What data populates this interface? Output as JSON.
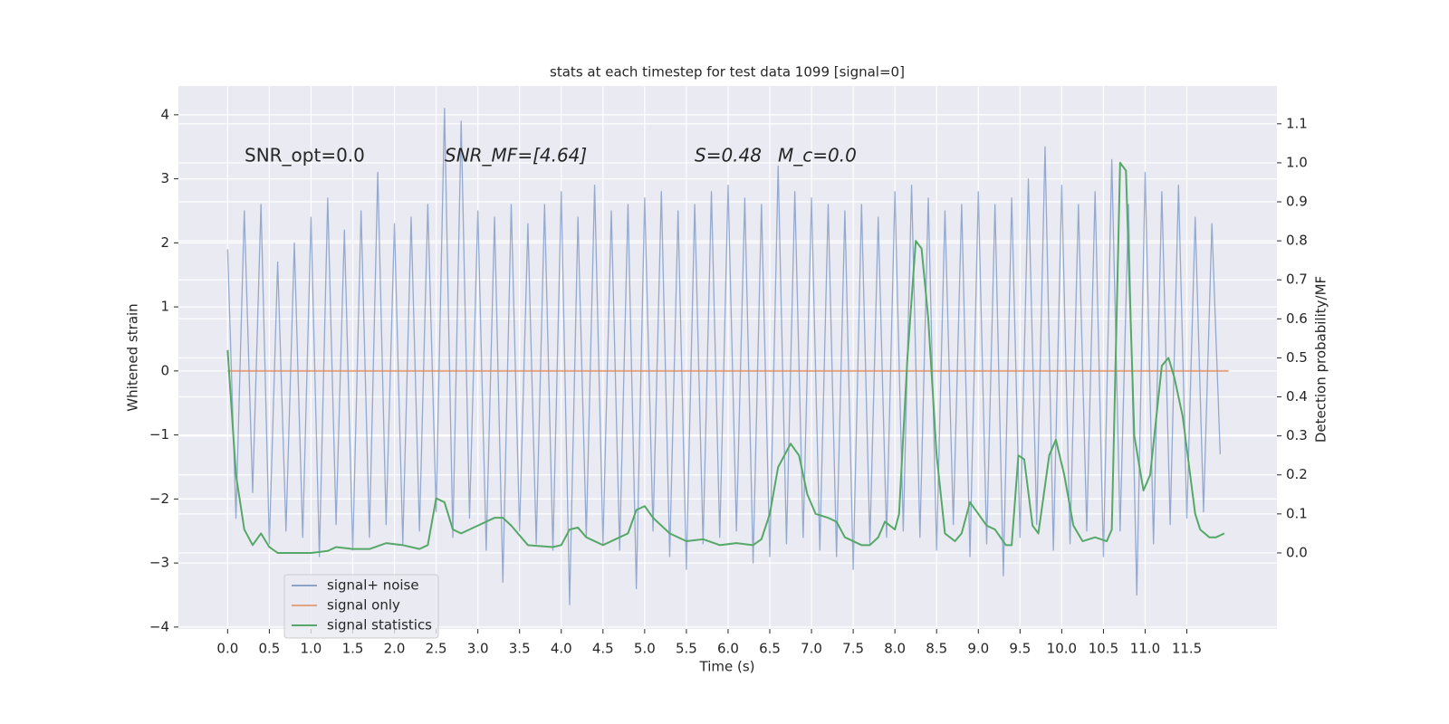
{
  "chart_data": {
    "type": "line",
    "title": "stats at each timestep for test data 1099 [signal=0]",
    "xlabel": "Time (s)",
    "ylabel": "Whitened strain",
    "y2label": "Detection probability/MF",
    "annotations": [
      "SNR_opt=0.0",
      "SNR_MF=[4.64]",
      "S=0.48",
      "M_c=0.0"
    ],
    "xlim": [
      -0.59,
      12.58
    ],
    "ylim": [
      -4.03,
      4.45
    ],
    "y2lim": [
      -0.195,
      1.197
    ],
    "xticks": [
      {
        "value": 0,
        "label": "0.0"
      },
      0.5,
      {
        "value": 1,
        "label": "1.0"
      },
      1.5,
      {
        "value": 2,
        "label": "2.0"
      },
      2.5,
      {
        "value": 3,
        "label": "3.0"
      },
      3.5,
      {
        "value": 4,
        "label": "4.0"
      },
      4.5,
      {
        "value": 5,
        "label": "5.0"
      },
      5.5,
      {
        "value": 6,
        "label": "6.0"
      },
      6.5,
      {
        "value": 7,
        "label": "7.0"
      },
      7.5,
      {
        "value": 8,
        "label": "8.0"
      },
      8.5,
      {
        "value": 9,
        "label": "9.0"
      },
      9.5,
      {
        "value": 10,
        "label": "10.0"
      },
      10.5,
      {
        "value": 11,
        "label": "11.0"
      },
      11.5
    ],
    "yticks": [
      {
        "value": -4,
        "label": "−4"
      },
      {
        "value": -3,
        "label": "−3"
      },
      {
        "value": -2,
        "label": "−2"
      },
      {
        "value": -1,
        "label": "−1"
      },
      0,
      1,
      2,
      3,
      4
    ],
    "y2ticks": [
      {
        "value": 0,
        "label": "0.0"
      },
      0.1,
      0.2,
      0.3,
      0.4,
      0.5,
      0.6,
      0.7,
      0.8,
      0.9,
      {
        "value": 1,
        "label": "1.0"
      },
      1.1
    ],
    "grid": true,
    "legend": "lower left",
    "series": [
      {
        "name": "signal+ noise",
        "color": "#4c72b0",
        "x": [
          0,
          0.1,
          0.2,
          0.3,
          0.4,
          0.5,
          0.6,
          0.7,
          0.8,
          0.9,
          1,
          1.1,
          1.2,
          1.3,
          1.4,
          1.5,
          1.6,
          1.7,
          1.8,
          1.9,
          2,
          2.1,
          2.2,
          2.3,
          2.4,
          2.5,
          2.6,
          2.7,
          2.8,
          2.9,
          3,
          3.1,
          3.2,
          3.3,
          3.4,
          3.5,
          3.6,
          3.7,
          3.8,
          3.9,
          4,
          4.1,
          4.2,
          4.3,
          4.4,
          4.5,
          4.6,
          4.7,
          4.8,
          4.9,
          5,
          5.1,
          5.2,
          5.3,
          5.4,
          5.5,
          5.6,
          5.7,
          5.8,
          5.9,
          6,
          6.1,
          6.2,
          6.3,
          6.4,
          6.5,
          6.6,
          6.7,
          6.8,
          6.9,
          7,
          7.1,
          7.2,
          7.3,
          7.4,
          7.5,
          7.6,
          7.7,
          7.8,
          7.9,
          8,
          8.1,
          8.2,
          8.3,
          8.4,
          8.5,
          8.6,
          8.7,
          8.8,
          8.9,
          9,
          9.1,
          9.2,
          9.3,
          9.4,
          9.5,
          9.6,
          9.7,
          9.8,
          9.9,
          10,
          10.1,
          10.2,
          10.3,
          10.4,
          10.5,
          10.6,
          10.7,
          10.8,
          10.9,
          11,
          11.1,
          11.2,
          11.3,
          11.4,
          11.5,
          11.6,
          11.7,
          11.8,
          11.9
        ],
        "values": [
          1.9,
          -2.3,
          2.5,
          -1.9,
          2.6,
          -2.7,
          1.7,
          -2.5,
          2.0,
          -2.6,
          2.4,
          -2.9,
          2.7,
          -2.4,
          2.2,
          -2.8,
          2.5,
          -2.6,
          3.1,
          -2.4,
          2.3,
          -2.7,
          2.4,
          -2.5,
          2.6,
          -2.2,
          4.1,
          -2.6,
          3.9,
          -2.3,
          2.5,
          -2.8,
          2.4,
          -3.3,
          2.6,
          -2.5,
          2.3,
          -2.7,
          2.6,
          -2.8,
          2.8,
          -3.65,
          2.4,
          -2.6,
          2.9,
          -2.7,
          2.5,
          -2.8,
          2.6,
          -3.4,
          2.7,
          -2.5,
          2.8,
          -2.9,
          2.5,
          -3.1,
          2.6,
          -2.7,
          2.8,
          -2.6,
          2.9,
          -2.5,
          2.7,
          -3.0,
          2.6,
          -2.9,
          3.2,
          -2.7,
          2.8,
          -2.6,
          2.7,
          -2.8,
          2.6,
          -2.9,
          2.5,
          -3.1,
          2.6,
          -2.7,
          2.4,
          -2.6,
          2.8,
          -2.5,
          2.9,
          -2.6,
          2.7,
          -2.8,
          2.5,
          -2.4,
          2.6,
          -2.9,
          2.8,
          -2.7,
          2.6,
          -3.2,
          2.7,
          -2.6,
          3.0,
          -2.4,
          3.5,
          -2.8,
          2.9,
          -2.7,
          2.6,
          -2.5,
          2.8,
          -2.9,
          3.3,
          -2.5,
          2.6,
          -3.5,
          3.1,
          -2.7,
          2.8,
          -2.4,
          2.9,
          -2.3,
          2.4,
          -2.2,
          2.3,
          -1.3
        ]
      },
      {
        "name": "signal only",
        "color": "#dd8452",
        "x": [
          0,
          12
        ],
        "values": [
          0,
          0
        ]
      },
      {
        "name": "signal statistics",
        "color": "#55a868",
        "axis": "y2",
        "x": [
          0,
          0.1,
          0.2,
          0.3,
          0.4,
          0.5,
          0.6,
          0.8,
          1.0,
          1.2,
          1.3,
          1.5,
          1.7,
          1.9,
          2.1,
          2.3,
          2.4,
          2.5,
          2.6,
          2.7,
          2.8,
          3.0,
          3.2,
          3.3,
          3.4,
          3.6,
          3.9,
          4.0,
          4.1,
          4.2,
          4.3,
          4.5,
          4.7,
          4.8,
          4.9,
          5.0,
          5.1,
          5.3,
          5.5,
          5.7,
          5.9,
          6.1,
          6.3,
          6.4,
          6.5,
          6.6,
          6.75,
          6.85,
          6.95,
          7.05,
          7.2,
          7.3,
          7.4,
          7.6,
          7.7,
          7.8,
          7.88,
          8.0,
          8.05,
          8.15,
          8.25,
          8.32,
          8.4,
          8.5,
          8.6,
          8.72,
          8.8,
          8.9,
          9.0,
          9.1,
          9.2,
          9.33,
          9.4,
          9.48,
          9.55,
          9.65,
          9.72,
          9.85,
          9.93,
          10.03,
          10.14,
          10.25,
          10.4,
          10.54,
          10.6,
          10.7,
          10.77,
          10.87,
          10.98,
          11.06,
          11.2,
          11.28,
          11.35,
          11.45,
          11.6,
          11.66,
          11.77,
          11.85,
          11.95
        ],
        "values": [
          0.52,
          0.2,
          0.06,
          0.02,
          0.05,
          0.015,
          0.0,
          0.0,
          0.0,
          0.005,
          0.015,
          0.01,
          0.01,
          0.025,
          0.02,
          0.01,
          0.02,
          0.14,
          0.13,
          0.06,
          0.05,
          0.07,
          0.09,
          0.09,
          0.07,
          0.02,
          0.015,
          0.02,
          0.06,
          0.065,
          0.04,
          0.02,
          0.04,
          0.05,
          0.11,
          0.12,
          0.09,
          0.05,
          0.03,
          0.035,
          0.02,
          0.025,
          0.02,
          0.035,
          0.1,
          0.22,
          0.28,
          0.25,
          0.15,
          0.1,
          0.09,
          0.08,
          0.04,
          0.02,
          0.02,
          0.04,
          0.08,
          0.06,
          0.1,
          0.5,
          0.8,
          0.78,
          0.6,
          0.25,
          0.05,
          0.03,
          0.05,
          0.13,
          0.1,
          0.07,
          0.06,
          0.02,
          0.02,
          0.25,
          0.24,
          0.07,
          0.05,
          0.25,
          0.29,
          0.2,
          0.07,
          0.03,
          0.04,
          0.03,
          0.06,
          1.0,
          0.98,
          0.3,
          0.16,
          0.2,
          0.48,
          0.5,
          0.45,
          0.35,
          0.1,
          0.06,
          0.04,
          0.04,
          0.05
        ]
      }
    ]
  }
}
